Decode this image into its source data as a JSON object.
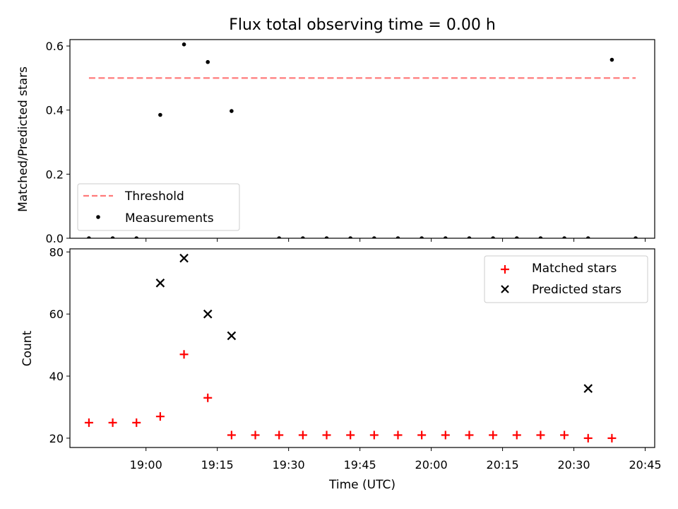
{
  "chart_data": [
    {
      "type": "scatter",
      "title": "Flux total observing time = 0.00 h",
      "xlabel": "",
      "ylabel": "Matched/Predicted stars",
      "ylim": [
        0,
        0.62
      ],
      "yticks": [
        "0.0",
        "0.2",
        "0.4",
        "0.6"
      ],
      "legend_position": "bottom-left",
      "threshold": {
        "name": "Threshold",
        "value": 0.5,
        "x_start": "18:48",
        "x_end": "20:43",
        "color": "#ff7b7b"
      },
      "series": [
        {
          "name": "Measurements",
          "color": "#000000",
          "x": [
            "18:48",
            "18:53",
            "18:58",
            "19:03",
            "19:08",
            "19:13",
            "19:18",
            "19:28",
            "19:33",
            "19:38",
            "19:43",
            "19:48",
            "19:53",
            "19:58",
            "20:03",
            "20:08",
            "20:13",
            "20:18",
            "20:23",
            "20:28",
            "20:33",
            "20:38",
            "20:43"
          ],
          "y": [
            0.0,
            0.0,
            0.0,
            0.385,
            0.605,
            0.55,
            0.397,
            0.0,
            0.0,
            0.0,
            0.0,
            0.0,
            0.0,
            0.0,
            0.0,
            0.0,
            0.0,
            0.0,
            0.0,
            0.0,
            0.0,
            0.557,
            0.0
          ]
        }
      ]
    },
    {
      "type": "scatter",
      "title": "",
      "xlabel": "Time (UTC)",
      "ylabel": "Count",
      "xlim": [
        "18:44",
        "20:47"
      ],
      "ylim": [
        17,
        81
      ],
      "yticks": [
        "20",
        "40",
        "60",
        "80"
      ],
      "xticks": [
        "19:00",
        "19:15",
        "19:30",
        "19:45",
        "20:00",
        "20:15",
        "20:30",
        "20:45"
      ],
      "legend_position": "top-right",
      "series": [
        {
          "name": "Matched stars",
          "color": "#ff0000",
          "marker": "plus",
          "x": [
            "18:48",
            "18:53",
            "18:58",
            "19:03",
            "19:08",
            "19:13",
            "19:18",
            "19:23",
            "19:28",
            "19:33",
            "19:38",
            "19:43",
            "19:48",
            "19:53",
            "19:58",
            "20:03",
            "20:08",
            "20:13",
            "20:18",
            "20:23",
            "20:28",
            "20:33",
            "20:38"
          ],
          "y": [
            25,
            25,
            25,
            27,
            47,
            33,
            21,
            21,
            21,
            21,
            21,
            21,
            21,
            21,
            21,
            21,
            21,
            21,
            21,
            21,
            21,
            20,
            20
          ]
        },
        {
          "name": "Predicted stars",
          "color": "#000000",
          "marker": "x",
          "x": [
            "19:03",
            "19:08",
            "19:13",
            "19:18",
            "20:33"
          ],
          "y": [
            70,
            78,
            60,
            53,
            36
          ]
        }
      ]
    }
  ]
}
